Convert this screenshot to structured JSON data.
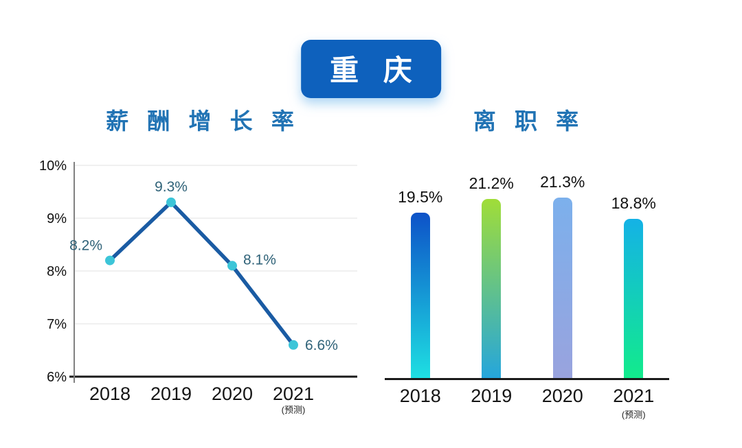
{
  "header": {
    "city_badge": "重 庆",
    "badge_color": "#0e61bd",
    "badge_text_color": "#ffffff"
  },
  "chart_data": [
    {
      "type": "line",
      "title": "薪 酬 增 长 率",
      "title_color": "#2173b4",
      "categories": [
        "2018",
        "2019",
        "2020",
        "2021"
      ],
      "category_notes": [
        "",
        "",
        "",
        "(预测)"
      ],
      "values": [
        8.2,
        9.3,
        8.1,
        6.6
      ],
      "point_labels": [
        "8.2%",
        "9.3%",
        "8.1%",
        "6.6%"
      ],
      "ylim": [
        6,
        10
      ],
      "yticks": [
        10,
        9,
        8,
        7,
        6
      ],
      "ytick_labels": [
        "10%",
        "9%",
        "8%",
        "7%",
        "6%"
      ],
      "grid": true,
      "legend": false,
      "line_color": "#1a5ba3",
      "marker_color": "#3cc5d8",
      "point_label_color": "#2f6278",
      "axis_color": "#1a1a1a",
      "yaxis_line_color": "#808080",
      "gridline_color": "#ebebeb"
    },
    {
      "type": "bar",
      "title": "离 职 率",
      "title_color": "#2173b4",
      "categories": [
        "2018",
        "2019",
        "2020",
        "2021"
      ],
      "category_notes": [
        "",
        "",
        "",
        "(预测)"
      ],
      "values": [
        19.5,
        21.2,
        21.3,
        18.8
      ],
      "bar_labels": [
        "19.5%",
        "21.2%",
        "21.3%",
        "18.8%"
      ],
      "ylim": [
        0,
        24
      ],
      "grid": false,
      "legend": false,
      "bar_label_color": "#111111",
      "axis_color": "#1a1a1a",
      "bar_gradients": [
        {
          "top": "#0d52c8",
          "bottom": "#1edfe2"
        },
        {
          "top": "#a0dd38",
          "bottom": "#25a6dc"
        },
        {
          "top": "#7cb0ec",
          "bottom": "#99a3de"
        },
        {
          "top": "#14b2e6",
          "bottom": "#12eb8c"
        }
      ]
    }
  ]
}
